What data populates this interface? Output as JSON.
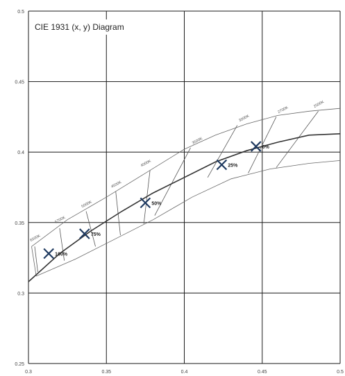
{
  "chart_data": {
    "type": "scatter",
    "title": "CIE 1931 (x, y) Diagram",
    "xlim": [
      0.3,
      0.5
    ],
    "ylim": [
      0.25,
      0.5
    ],
    "x_ticks": [
      "0.3",
      "0.35",
      "0.4",
      "0.45",
      "0.5"
    ],
    "y_ticks": [
      {
        "value": 0.5,
        "label": "0.5"
      },
      {
        "value": 0.45,
        "label": "0.45"
      },
      {
        "value": 0.4,
        "label": "0.4"
      },
      {
        "value": 0.35,
        "label": "0.35"
      },
      {
        "value": 0.3,
        "label": "0.3"
      },
      {
        "value": 0.25,
        "label": "0.25"
      }
    ],
    "grid": true,
    "planckian_locus": [
      [
        0.3,
        0.308
      ],
      [
        0.32,
        0.328
      ],
      [
        0.34,
        0.344
      ],
      [
        0.36,
        0.358
      ],
      [
        0.38,
        0.371
      ],
      [
        0.4,
        0.382
      ],
      [
        0.42,
        0.393
      ],
      [
        0.44,
        0.401
      ],
      [
        0.46,
        0.407
      ],
      [
        0.48,
        0.412
      ],
      [
        0.5,
        0.413
      ]
    ],
    "band_upper": [
      [
        0.302,
        0.333
      ],
      [
        0.325,
        0.352
      ],
      [
        0.35,
        0.368
      ],
      [
        0.375,
        0.385
      ],
      [
        0.4,
        0.402
      ],
      [
        0.42,
        0.412
      ],
      [
        0.44,
        0.42
      ],
      [
        0.46,
        0.426
      ],
      [
        0.48,
        0.429
      ],
      [
        0.5,
        0.431
      ]
    ],
    "band_lower": [
      [
        0.305,
        0.312
      ],
      [
        0.33,
        0.324
      ],
      [
        0.355,
        0.338
      ],
      [
        0.38,
        0.352
      ],
      [
        0.405,
        0.368
      ],
      [
        0.43,
        0.381
      ],
      [
        0.455,
        0.388
      ],
      [
        0.48,
        0.392
      ],
      [
        0.5,
        0.394
      ]
    ],
    "isotemperature_lines": [
      {
        "label": "6500K",
        "top": [
          0.304,
          0.333
        ],
        "bottom": [
          0.306,
          0.315
        ],
        "label_pos": [
          0.3015,
          0.3365
        ]
      },
      {
        "label": "5700K",
        "top": [
          0.32,
          0.346
        ],
        "bottom": [
          0.323,
          0.323
        ],
        "label_pos": [
          0.3175,
          0.3495
        ]
      },
      {
        "label": "5000K",
        "top": [
          0.337,
          0.358
        ],
        "bottom": [
          0.343,
          0.333
        ],
        "label_pos": [
          0.3345,
          0.3605
        ]
      },
      {
        "label": "4500K",
        "top": [
          0.356,
          0.372
        ],
        "bottom": [
          0.359,
          0.341
        ],
        "label_pos": [
          0.3535,
          0.3745
        ]
      },
      {
        "label": "4000K",
        "top": [
          0.378,
          0.387
        ],
        "bottom": [
          0.374,
          0.349
        ],
        "label_pos": [
          0.3725,
          0.3895
        ]
      },
      {
        "label": "3500K",
        "top": [
          0.404,
          0.403
        ],
        "bottom": [
          0.381,
          0.355
        ],
        "label_pos": [
          0.4055,
          0.4055
        ]
      },
      {
        "label": "3000K",
        "top": [
          0.434,
          0.419
        ],
        "bottom": [
          0.415,
          0.382
        ],
        "label_pos": [
          0.4355,
          0.4215
        ]
      },
      {
        "label": "2700K",
        "top": [
          0.459,
          0.425
        ],
        "bottom": [
          0.441,
          0.385
        ],
        "label_pos": [
          0.4605,
          0.4275
        ]
      },
      {
        "label": "2500K",
        "top": [
          0.486,
          0.429
        ],
        "bottom": [
          0.459,
          0.389
        ],
        "label_pos": [
          0.4835,
          0.4315
        ]
      }
    ],
    "series": [
      {
        "marker": "x",
        "color": "#1f3a60",
        "points": [
          {
            "x": 0.313,
            "y": 0.328,
            "label": "100%"
          },
          {
            "x": 0.336,
            "y": 0.342,
            "label": "75%"
          },
          {
            "x": 0.375,
            "y": 0.364,
            "label": "50%"
          },
          {
            "x": 0.424,
            "y": 0.391,
            "label": "25%"
          },
          {
            "x": 0.446,
            "y": 0.404,
            "label": "0%"
          }
        ]
      }
    ]
  }
}
